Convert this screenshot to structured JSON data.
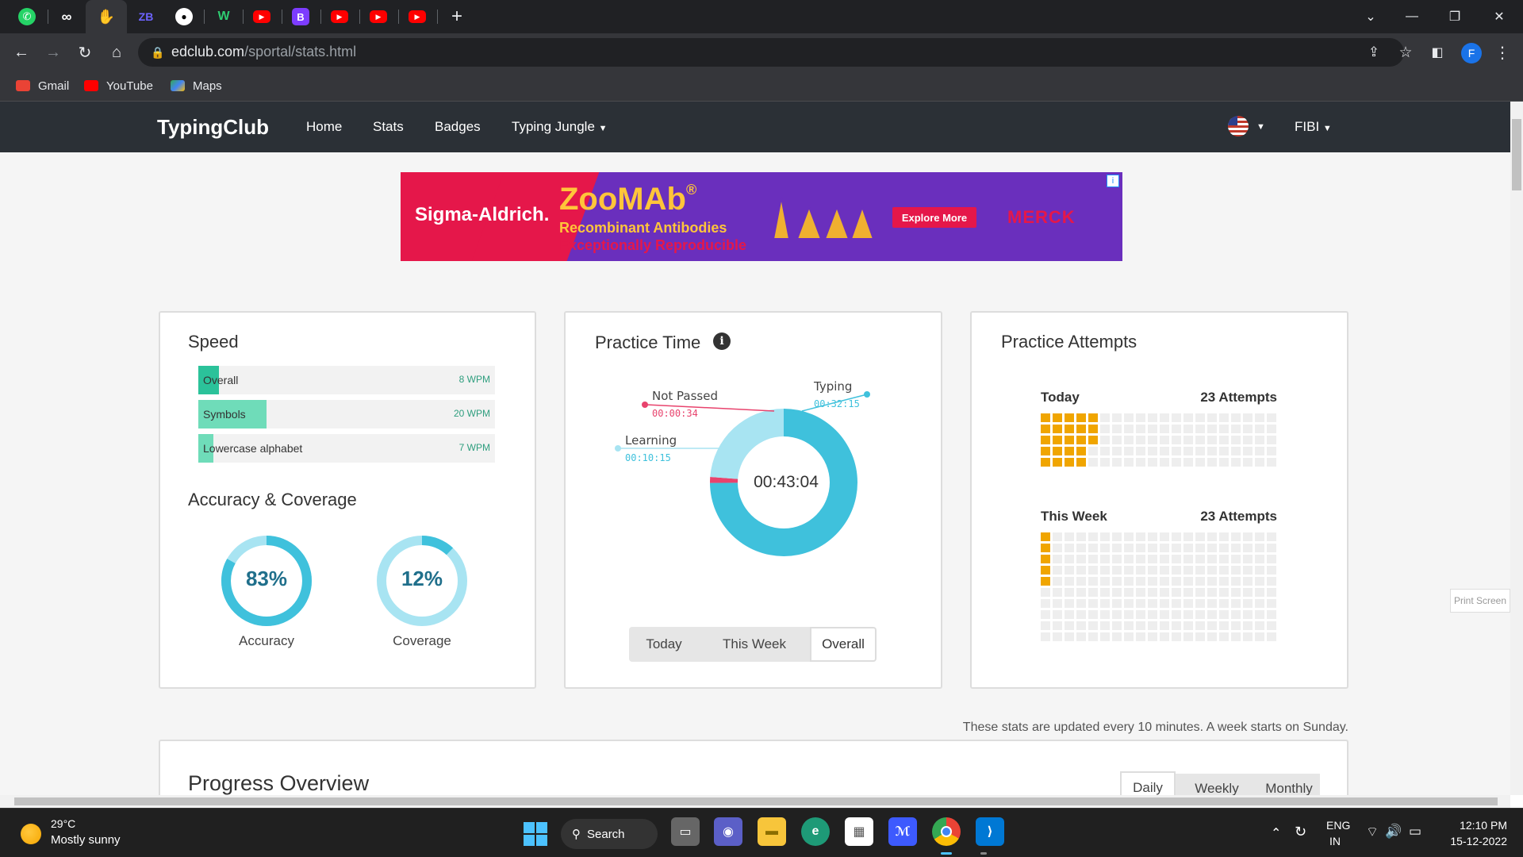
{
  "browser": {
    "url_host": "edclub.com",
    "url_path": "/sportal/stats.html",
    "bookmarks": [
      "Gmail",
      "YouTube",
      "Maps"
    ],
    "profile_initial": "F"
  },
  "site": {
    "logo": "TypingClub",
    "nav": [
      "Home",
      "Stats",
      "Badges",
      "Typing Jungle"
    ],
    "user": "FIBI"
  },
  "ad": {
    "brand": "Sigma-Aldrich.",
    "product": "ZooMAb",
    "reg": "®",
    "line1": "Recombinant Antibodies",
    "line2": "Exceptionally Reproducible",
    "cta": "Explore More",
    "partner": "MERCK"
  },
  "speed": {
    "title": "Speed",
    "bars": [
      {
        "label": "Overall",
        "value": "8 WPM",
        "fill": 0.07
      },
      {
        "label": "Symbols",
        "value": "20 WPM",
        "fill": 0.23
      },
      {
        "label": "Lowercase alphabet",
        "value": "7 WPM",
        "fill": 0.05
      }
    ]
  },
  "accuracy": {
    "title": "Accuracy & Coverage",
    "accuracy_value": "83%",
    "accuracy_label": "Accuracy",
    "accuracy_fraction": 0.83,
    "coverage_value": "12%",
    "coverage_label": "Coverage",
    "coverage_fraction": 0.12
  },
  "practice_time": {
    "title": "Practice Time",
    "total": "00:43:04",
    "segments": [
      {
        "label": "Typing",
        "time": "00:32:15",
        "seconds": 1935,
        "color": "#3fc1dc"
      },
      {
        "label": "Not Passed",
        "time": "00:00:34",
        "seconds": 34,
        "color": "#e8436d"
      },
      {
        "label": "Learning",
        "time": "00:10:15",
        "seconds": 615,
        "color": "#a8e4f2"
      }
    ],
    "tabs": [
      "Today",
      "This Week",
      "Overall"
    ],
    "active_tab": "Overall"
  },
  "attempts": {
    "title": "Practice Attempts",
    "today_label": "Today",
    "today_count": "23 Attempts",
    "today_filled": 23,
    "week_label": "This Week",
    "week_count": "23 Attempts",
    "week_filled": 5
  },
  "footer_note": "These stats are updated every 10 minutes. A week starts on Sunday.",
  "print_screen": "Print Screen",
  "progress": {
    "title": "Progress Overview",
    "tabs": [
      "Daily",
      "Weekly",
      "Monthly"
    ]
  },
  "taskbar": {
    "weather_temp": "29°C",
    "weather_desc": "Mostly sunny",
    "search": "Search",
    "lang": "ENG",
    "region": "IN",
    "time": "12:10 PM",
    "date": "15-12-2022"
  }
}
